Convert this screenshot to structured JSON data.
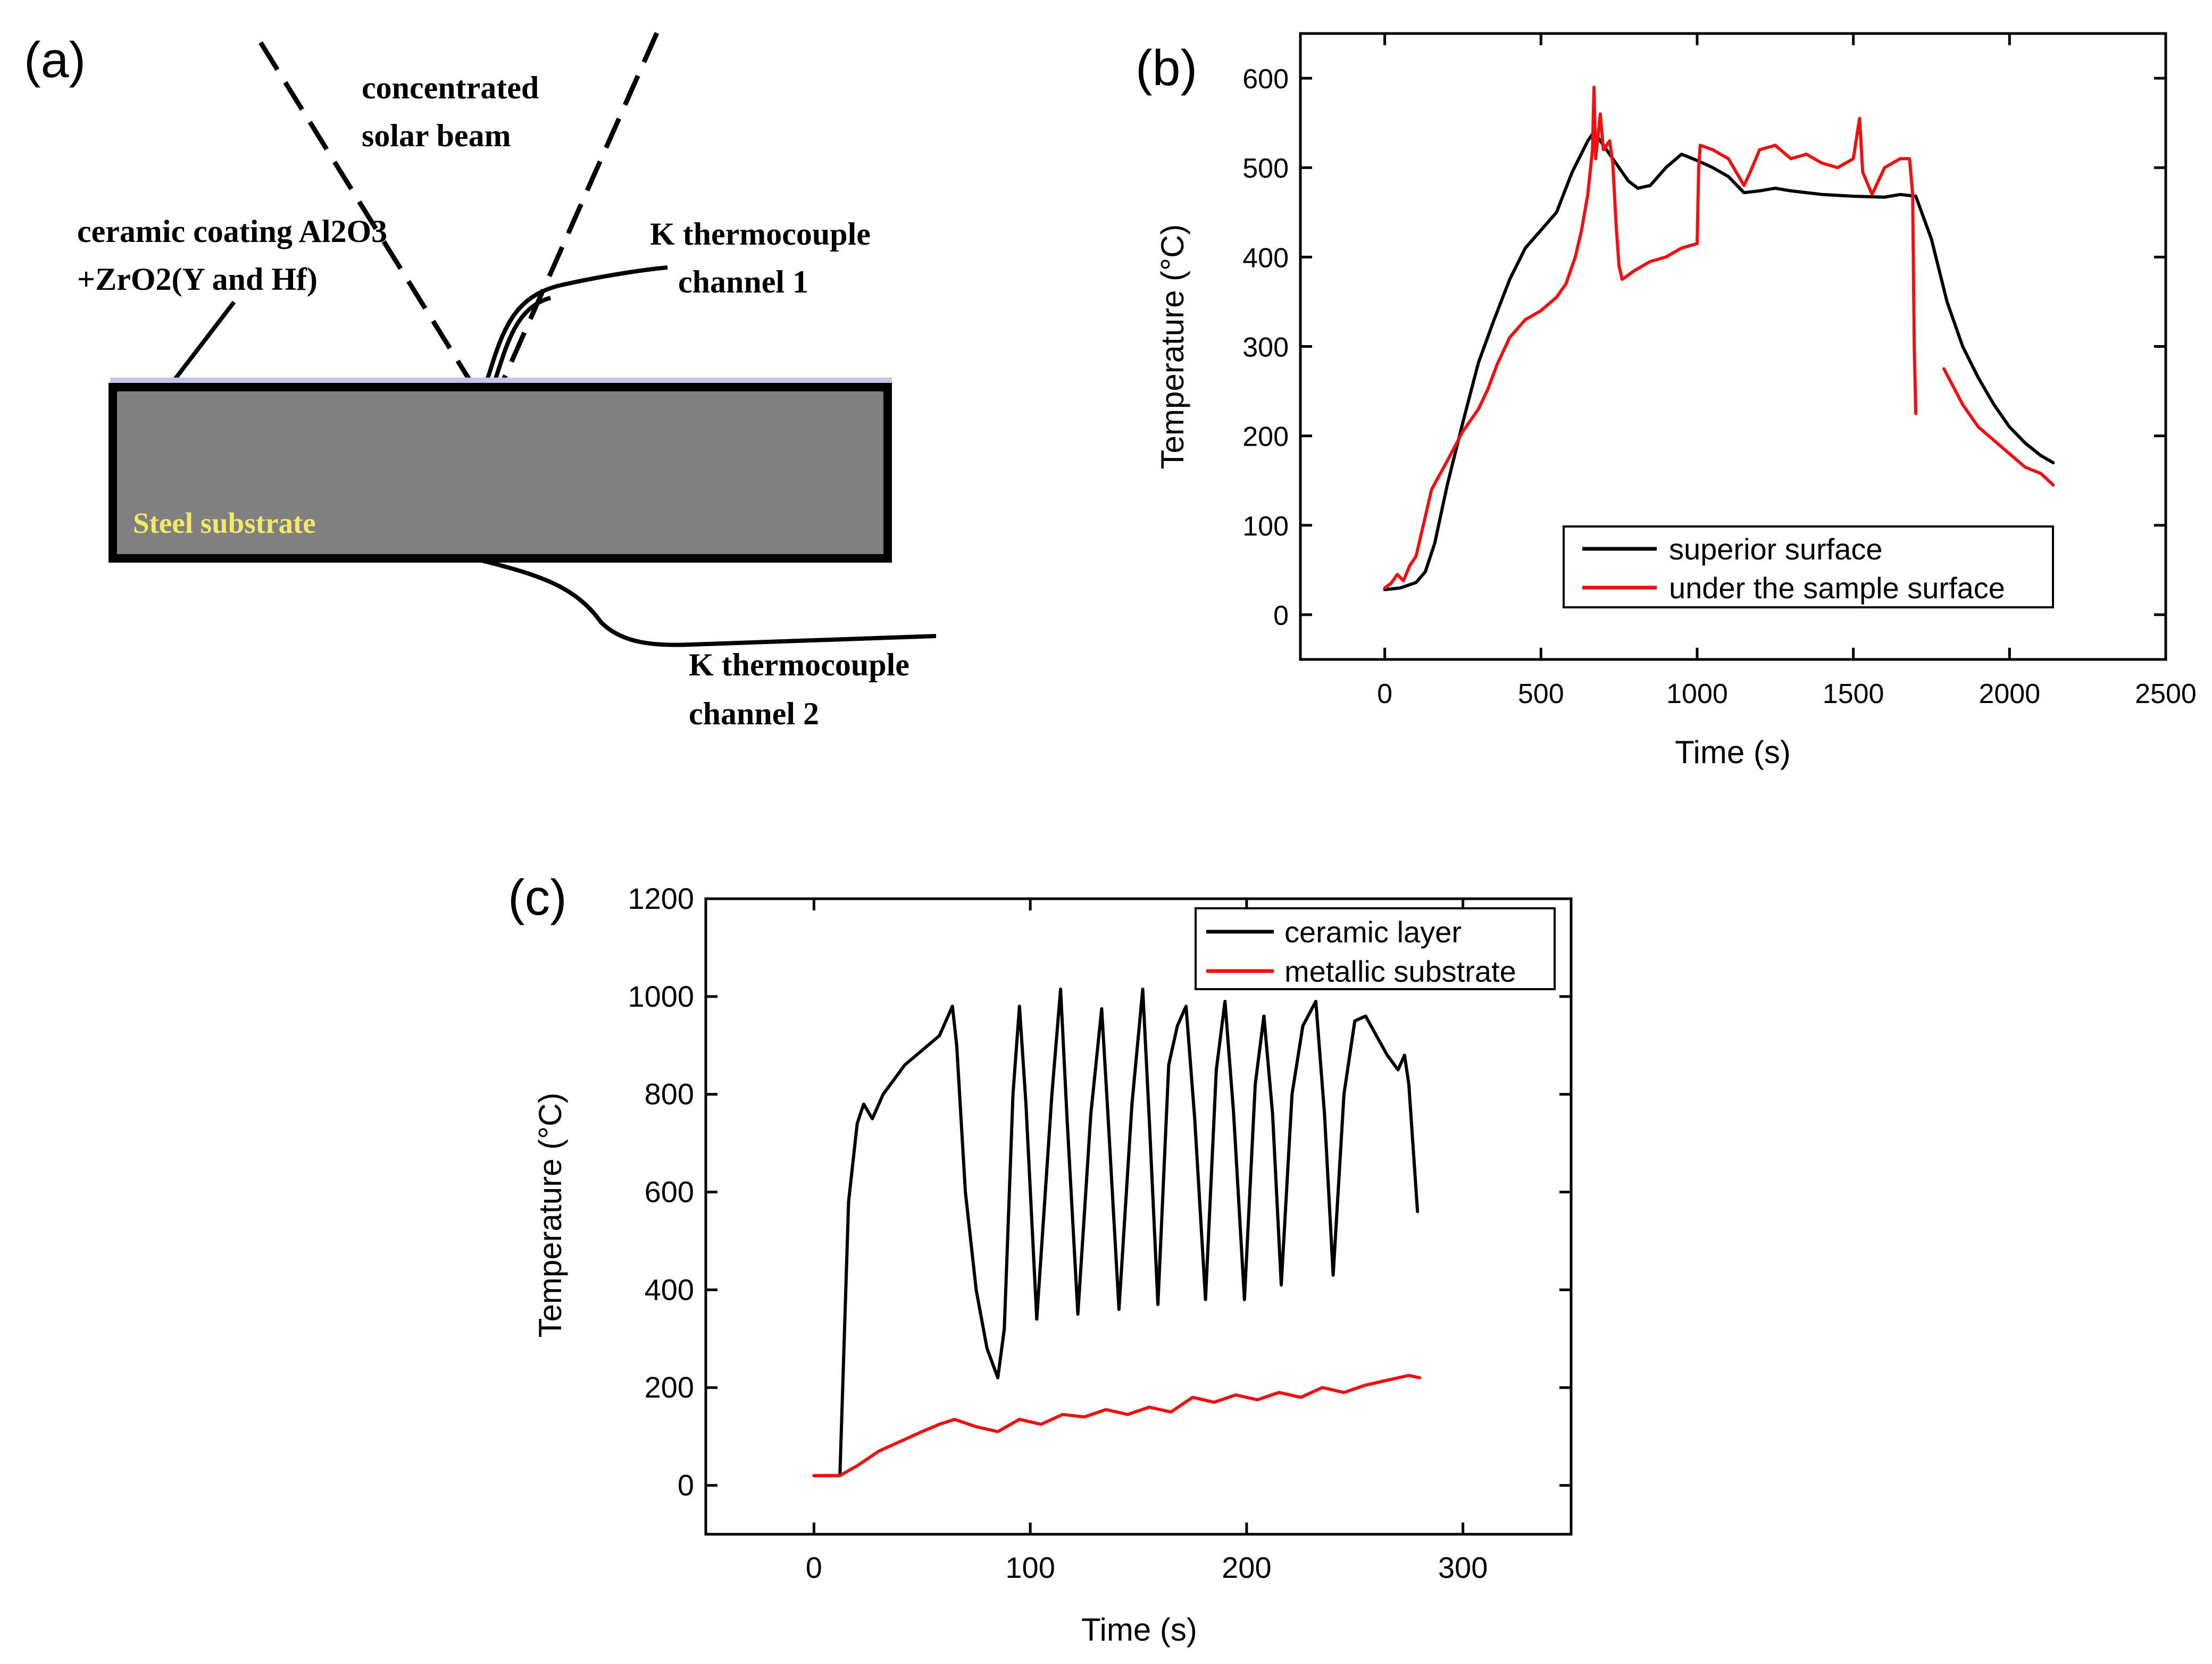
{
  "panel_a": {
    "label": "(a)",
    "text_beam_1": "concentrated",
    "text_beam_2": "solar beam",
    "text_coating_1": "ceramic coating Al2O3",
    "text_coating_2": "+ZrO2(Y and Hf)",
    "text_tc1_1": "K thermocouple",
    "text_tc1_2": "channel 1",
    "text_tc2_1": "K thermocouple",
    "text_tc2_2": "channel 2",
    "text_substrate": "Steel substrate",
    "colors": {
      "coating": "#c8c4e8",
      "substrate": "#808080",
      "substrate_text": "#f2e86a"
    }
  },
  "chart_data": [
    {
      "id": "b",
      "panel_label": "(b)",
      "type": "line",
      "title": "",
      "xlabel": "Time (s)",
      "ylabel": "Temperature (°C)",
      "xlim": [
        -270,
        2500
      ],
      "ylim": [
        -50,
        650
      ],
      "xticks": [
        0,
        500,
        1000,
        1500,
        2000,
        2500
      ],
      "yticks": [
        0,
        100,
        200,
        300,
        400,
        500,
        600
      ],
      "legend_position": "bottom-right",
      "series": [
        {
          "name": "superior surface",
          "color": "#000000",
          "segments": [
            [
              [
                0,
                28
              ],
              [
                50,
                30
              ],
              [
                100,
                36
              ],
              [
                130,
                48
              ],
              [
                160,
                80
              ],
              [
                200,
                145
              ],
              [
                250,
                215
              ],
              [
                300,
                282
              ],
              [
                350,
                330
              ],
              [
                400,
                375
              ],
              [
                450,
                410
              ],
              [
                500,
                430
              ],
              [
                550,
                450
              ],
              [
                600,
                495
              ],
              [
                650,
                530
              ],
              [
                670,
                540
              ],
              [
                700,
                525
              ],
              [
                740,
                505
              ],
              [
                780,
                485
              ],
              [
                810,
                477
              ],
              [
                850,
                480
              ],
              [
                900,
                500
              ],
              [
                950,
                515
              ],
              [
                1000,
                508
              ],
              [
                1050,
                500
              ],
              [
                1100,
                490
              ],
              [
                1150,
                472
              ],
              [
                1200,
                474
              ],
              [
                1250,
                477
              ],
              [
                1300,
                474
              ],
              [
                1400,
                470
              ],
              [
                1500,
                468
              ],
              [
                1600,
                467
              ],
              [
                1650,
                470
              ],
              [
                1700,
                468
              ],
              [
                1750,
                420
              ],
              [
                1800,
                350
              ],
              [
                1850,
                300
              ],
              [
                1900,
                265
              ],
              [
                1950,
                235
              ],
              [
                2000,
                210
              ],
              [
                2050,
                192
              ],
              [
                2100,
                178
              ],
              [
                2140,
                170
              ]
            ]
          ]
        },
        {
          "name": "under the sample surface",
          "color": "#ee1111",
          "segments": [
            [
              [
                0,
                30
              ],
              [
                20,
                35
              ],
              [
                40,
                45
              ],
              [
                60,
                38
              ],
              [
                80,
                55
              ],
              [
                100,
                65
              ],
              [
                120,
                95
              ],
              [
                150,
                140
              ],
              [
                200,
                172
              ],
              [
                250,
                205
              ],
              [
                300,
                230
              ],
              [
                330,
                252
              ],
              [
                360,
                280
              ],
              [
                400,
                310
              ],
              [
                450,
                330
              ],
              [
                500,
                340
              ],
              [
                550,
                355
              ],
              [
                580,
                370
              ],
              [
                610,
                400
              ],
              [
                630,
                430
              ],
              [
                650,
                470
              ],
              [
                665,
                520
              ],
              [
                670,
                590
              ],
              [
                675,
                510
              ],
              [
                690,
                560
              ],
              [
                700,
                520
              ],
              [
                720,
                530
              ],
              [
                730,
                505
              ],
              [
                740,
                440
              ],
              [
                750,
                390
              ],
              [
                760,
                375
              ],
              [
                800,
                385
              ],
              [
                850,
                395
              ],
              [
                900,
                400
              ],
              [
                950,
                410
              ],
              [
                1000,
                415
              ],
              [
                1005,
                500
              ],
              [
                1010,
                525
              ],
              [
                1050,
                520
              ],
              [
                1100,
                510
              ],
              [
                1150,
                480
              ],
              [
                1170,
                495
              ],
              [
                1200,
                520
              ],
              [
                1250,
                525
              ],
              [
                1300,
                510
              ],
              [
                1350,
                515
              ],
              [
                1400,
                505
              ],
              [
                1450,
                500
              ],
              [
                1500,
                510
              ],
              [
                1520,
                555
              ],
              [
                1530,
                495
              ],
              [
                1560,
                470
              ],
              [
                1600,
                500
              ],
              [
                1650,
                510
              ],
              [
                1680,
                510
              ],
              [
                1690,
                470
              ],
              [
                1695,
                300
              ],
              [
                1700,
                225
              ]
            ],
            [
              [
                1790,
                275
              ],
              [
                1850,
                235
              ],
              [
                1900,
                210
              ],
              [
                1950,
                195
              ],
              [
                2000,
                180
              ],
              [
                2050,
                165
              ],
              [
                2100,
                158
              ],
              [
                2140,
                145
              ]
            ]
          ]
        }
      ]
    },
    {
      "id": "c",
      "panel_label": "(c)",
      "type": "line",
      "title": "",
      "xlabel": "Time (s)",
      "ylabel": "Temperature (°C)",
      "xlim": [
        -50,
        350
      ],
      "ylim": [
        -100,
        1200
      ],
      "xticks": [
        0,
        100,
        200,
        300
      ],
      "yticks": [
        0,
        200,
        400,
        600,
        800,
        1000,
        1200
      ],
      "legend_position": "top-right",
      "series": [
        {
          "name": "ceramic layer",
          "color": "#000000",
          "segments": [
            [
              [
                0,
                20
              ],
              [
                12,
                20
              ],
              [
                16,
                580
              ],
              [
                20,
                740
              ],
              [
                23,
                780
              ],
              [
                27,
                750
              ],
              [
                32,
                800
              ],
              [
                37,
                830
              ],
              [
                42,
                860
              ],
              [
                50,
                890
              ],
              [
                58,
                920
              ],
              [
                64,
                980
              ],
              [
                66,
                900
              ],
              [
                70,
                600
              ],
              [
                75,
                400
              ],
              [
                80,
                280
              ],
              [
                85,
                220
              ],
              [
                88,
                320
              ],
              [
                92,
                800
              ],
              [
                95,
                980
              ],
              [
                98,
                780
              ],
              [
                103,
                340
              ],
              [
                110,
                800
              ],
              [
                114,
                1015
              ],
              [
                117,
                750
              ],
              [
                122,
                350
              ],
              [
                128,
                760
              ],
              [
                133,
                975
              ],
              [
                136,
                750
              ],
              [
                141,
                360
              ],
              [
                147,
                780
              ],
              [
                152,
                1015
              ],
              [
                155,
                750
              ],
              [
                159,
                370
              ],
              [
                164,
                860
              ],
              [
                168,
                940
              ],
              [
                172,
                980
              ],
              [
                176,
                750
              ],
              [
                181,
                380
              ],
              [
                186,
                850
              ],
              [
                190,
                990
              ],
              [
                194,
                760
              ],
              [
                199,
                380
              ],
              [
                204,
                820
              ],
              [
                208,
                960
              ],
              [
                212,
                760
              ],
              [
                216,
                410
              ],
              [
                221,
                800
              ],
              [
                226,
                940
              ],
              [
                232,
                990
              ],
              [
                236,
                760
              ],
              [
                240,
                430
              ],
              [
                245,
                800
              ],
              [
                250,
                950
              ],
              [
                255,
                960
              ],
              [
                260,
                920
              ],
              [
                265,
                880
              ],
              [
                270,
                850
              ],
              [
                273,
                880
              ],
              [
                275,
                820
              ],
              [
                279,
                560
              ]
            ]
          ]
        },
        {
          "name": "metallic substrate",
          "color": "#ee1111",
          "segments": [
            [
              [
                0,
                20
              ],
              [
                12,
                20
              ],
              [
                20,
                40
              ],
              [
                30,
                70
              ],
              [
                40,
                90
              ],
              [
                50,
                110
              ],
              [
                58,
                125
              ],
              [
                65,
                135
              ],
              [
                75,
                120
              ],
              [
                85,
                110
              ],
              [
                95,
                135
              ],
              [
                105,
                125
              ],
              [
                115,
                145
              ],
              [
                125,
                140
              ],
              [
                135,
                155
              ],
              [
                145,
                145
              ],
              [
                155,
                160
              ],
              [
                165,
                150
              ],
              [
                175,
                180
              ],
              [
                185,
                170
              ],
              [
                195,
                185
              ],
              [
                205,
                175
              ],
              [
                215,
                190
              ],
              [
                225,
                180
              ],
              [
                235,
                200
              ],
              [
                245,
                190
              ],
              [
                255,
                205
              ],
              [
                265,
                215
              ],
              [
                275,
                225
              ],
              [
                280,
                220
              ]
            ]
          ]
        }
      ]
    }
  ]
}
